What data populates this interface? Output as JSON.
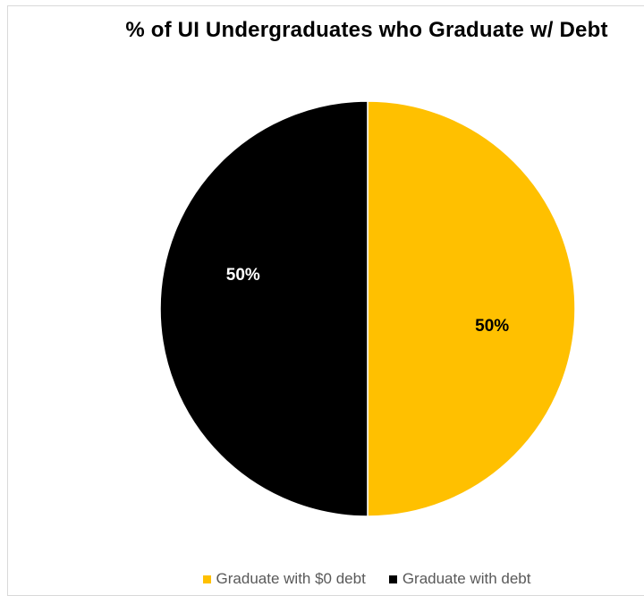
{
  "chart_data": {
    "type": "pie",
    "title": "% of UI Undergraduates who Graduate w/ Debt",
    "categories": [
      "Graduate with $0 debt",
      "Graduate with debt"
    ],
    "values": [
      50,
      50
    ],
    "data_labels": [
      "50%",
      "50%"
    ],
    "colors": [
      "#FFC000",
      "#000000"
    ],
    "label_colors": [
      "#000000",
      "#FFFFFF"
    ],
    "legend_position": "bottom",
    "legend": [
      "Graduate with $0 debt",
      "Graduate with debt"
    ]
  }
}
